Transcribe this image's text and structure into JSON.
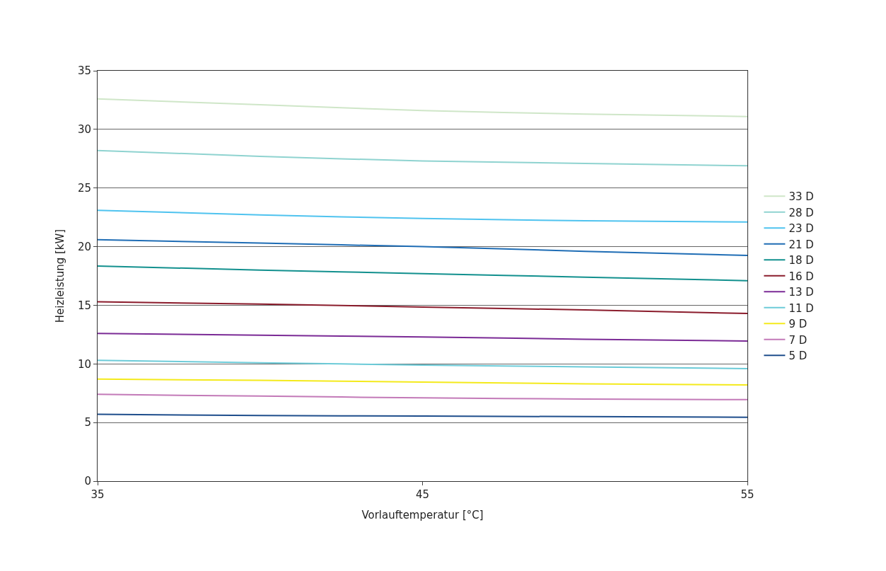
{
  "chart_data": {
    "type": "line",
    "xlabel": "Vorlauftemperatur [°C]",
    "ylabel": "Heizleistung [kW]",
    "x": [
      35,
      40,
      45,
      50,
      55
    ],
    "xlim": [
      35,
      55
    ],
    "xticks": [
      35,
      45,
      55
    ],
    "ylim": [
      0,
      35
    ],
    "yticks": [
      0,
      5,
      10,
      15,
      20,
      25,
      30,
      35
    ],
    "grid": "y",
    "legend": "right",
    "line_style": "solid",
    "series": [
      {
        "name": "33 D",
        "color": "#cfe6c8",
        "values": [
          32.6,
          32.1,
          31.6,
          31.3,
          31.1
        ]
      },
      {
        "name": "28 D",
        "color": "#8fd3d0",
        "values": [
          28.2,
          27.7,
          27.3,
          27.1,
          26.9
        ]
      },
      {
        "name": "23 D",
        "color": "#4fc3ef",
        "values": [
          23.1,
          22.7,
          22.4,
          22.2,
          22.1
        ]
      },
      {
        "name": "21 D",
        "color": "#1f6db5",
        "values": [
          20.6,
          20.3,
          20.0,
          19.6,
          19.25
        ]
      },
      {
        "name": "18 D",
        "color": "#12908e",
        "values": [
          18.35,
          18.0,
          17.7,
          17.4,
          17.1
        ]
      },
      {
        "name": "16 D",
        "color": "#8b1c2c",
        "values": [
          15.3,
          15.1,
          14.85,
          14.6,
          14.3
        ]
      },
      {
        "name": "13 D",
        "color": "#7b2b96",
        "values": [
          12.6,
          12.45,
          12.3,
          12.1,
          11.95
        ]
      },
      {
        "name": "11 D",
        "color": "#6ccbd8",
        "values": [
          10.3,
          10.1,
          9.9,
          9.75,
          9.6
        ]
      },
      {
        "name": "9 D",
        "color": "#f4ea1c",
        "values": [
          8.7,
          8.6,
          8.45,
          8.3,
          8.2
        ]
      },
      {
        "name": "7 D",
        "color": "#c37ab8",
        "values": [
          7.4,
          7.25,
          7.1,
          7.0,
          6.95
        ]
      },
      {
        "name": "5 D",
        "color": "#1f4e8c",
        "values": [
          5.7,
          5.6,
          5.55,
          5.5,
          5.45
        ]
      }
    ]
  }
}
